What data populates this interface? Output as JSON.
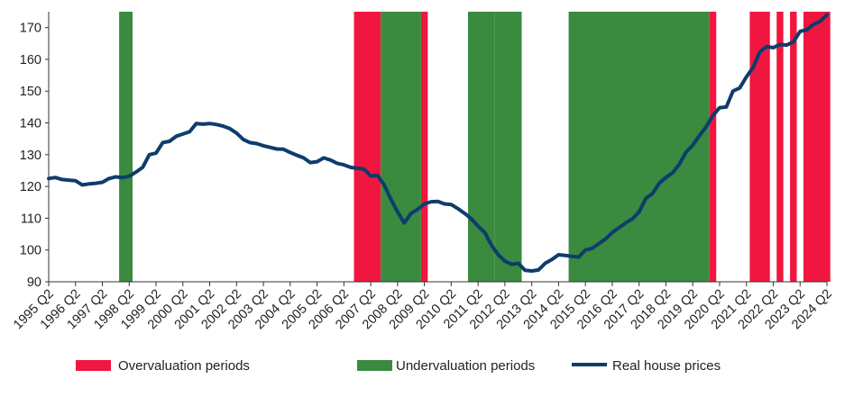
{
  "chart_data": {
    "type": "line",
    "title": "",
    "xlabel": "",
    "ylabel": "",
    "ylim": [
      90,
      175
    ],
    "yticks": [
      90,
      100,
      110,
      120,
      130,
      140,
      150,
      160,
      170
    ],
    "xticks": [
      "1995 Q2",
      "1996 Q2",
      "1997 Q2",
      "1998 Q2",
      "1999 Q2",
      "2000 Q2",
      "2001 Q2",
      "2002 Q2",
      "2003 Q2",
      "2004 Q2",
      "2005 Q2",
      "2006 Q2",
      "2007 Q2",
      "2008 Q2",
      "2009 Q2",
      "2010 Q2",
      "2011 Q2",
      "2012 Q2",
      "2013 Q2",
      "2014 Q2",
      "2015 Q2",
      "2016 Q2",
      "2017 Q2",
      "2018 Q2",
      "2019 Q2",
      "2020 Q2",
      "2021 Q2",
      "2022 Q2",
      "2023 Q2",
      "2024 Q2"
    ],
    "grid": false,
    "legend_position": "bottom",
    "series": [
      {
        "name": "Real house prices",
        "color": "#0d3d6b",
        "points": [
          [
            "1995 Q2",
            122.5
          ],
          [
            "1995 Q3",
            122.8
          ],
          [
            "1995 Q4",
            122.2
          ],
          [
            "1996 Q1",
            122.0
          ],
          [
            "1996 Q2",
            121.8
          ],
          [
            "1996 Q3",
            120.5
          ],
          [
            "1996 Q4",
            120.8
          ],
          [
            "1997 Q1",
            121.0
          ],
          [
            "1997 Q2",
            121.3
          ],
          [
            "1997 Q3",
            122.5
          ],
          [
            "1997 Q4",
            123.0
          ],
          [
            "1998 Q1",
            122.8
          ],
          [
            "1998 Q2",
            123.2
          ],
          [
            "1998 Q3",
            124.5
          ],
          [
            "1998 Q4",
            126.0
          ],
          [
            "1999 Q1",
            130.0
          ],
          [
            "1999 Q2",
            130.5
          ],
          [
            "1999 Q3",
            133.8
          ],
          [
            "1999 Q4",
            134.2
          ],
          [
            "2000 Q1",
            135.8
          ],
          [
            "2000 Q2",
            136.5
          ],
          [
            "2000 Q3",
            137.2
          ],
          [
            "2000 Q4",
            139.8
          ],
          [
            "2001 Q1",
            139.6
          ],
          [
            "2001 Q2",
            139.8
          ],
          [
            "2001 Q3",
            139.5
          ],
          [
            "2001 Q4",
            139.0
          ],
          [
            "2002 Q1",
            138.2
          ],
          [
            "2002 Q2",
            136.8
          ],
          [
            "2002 Q3",
            134.8
          ],
          [
            "2002 Q4",
            133.8
          ],
          [
            "2003 Q1",
            133.5
          ],
          [
            "2003 Q2",
            132.8
          ],
          [
            "2003 Q3",
            132.3
          ],
          [
            "2003 Q4",
            131.8
          ],
          [
            "2004 Q1",
            131.7
          ],
          [
            "2004 Q2",
            130.7
          ],
          [
            "2004 Q3",
            129.8
          ],
          [
            "2004 Q4",
            129.0
          ],
          [
            "2005 Q1",
            127.5
          ],
          [
            "2005 Q2",
            127.8
          ],
          [
            "2005 Q3",
            129.0
          ],
          [
            "2005 Q4",
            128.3
          ],
          [
            "2006 Q1",
            127.3
          ],
          [
            "2006 Q2",
            126.8
          ],
          [
            "2006 Q3",
            126.0
          ],
          [
            "2006 Q4",
            125.7
          ],
          [
            "2007 Q1",
            125.5
          ],
          [
            "2007 Q2",
            123.3
          ],
          [
            "2007 Q3",
            123.5
          ],
          [
            "2007 Q4",
            120.5
          ],
          [
            "2008 Q1",
            116.0
          ],
          [
            "2008 Q2",
            112.0
          ],
          [
            "2008 Q3",
            108.5
          ],
          [
            "2008 Q4",
            111.5
          ],
          [
            "2009 Q1",
            112.8
          ],
          [
            "2009 Q2",
            114.5
          ],
          [
            "2009 Q3",
            115.2
          ],
          [
            "2009 Q4",
            115.3
          ],
          [
            "2010 Q1",
            114.5
          ],
          [
            "2010 Q2",
            114.3
          ],
          [
            "2010 Q3",
            113.0
          ],
          [
            "2010 Q4",
            111.5
          ],
          [
            "2011 Q1",
            109.8
          ],
          [
            "2011 Q2",
            107.5
          ],
          [
            "2011 Q3",
            105.5
          ],
          [
            "2011 Q4",
            101.5
          ],
          [
            "2012 Q1",
            98.5
          ],
          [
            "2012 Q2",
            96.5
          ],
          [
            "2012 Q3",
            95.5
          ],
          [
            "2012 Q4",
            95.8
          ],
          [
            "2013 Q1",
            93.6
          ],
          [
            "2013 Q2",
            93.4
          ],
          [
            "2013 Q3",
            93.7
          ],
          [
            "2013 Q4",
            95.8
          ],
          [
            "2014 Q1",
            97.0
          ],
          [
            "2014 Q2",
            98.5
          ],
          [
            "2014 Q3",
            98.3
          ],
          [
            "2014 Q4",
            98.0
          ],
          [
            "2015 Q1",
            97.8
          ],
          [
            "2015 Q2",
            100.0
          ],
          [
            "2015 Q3",
            100.5
          ],
          [
            "2015 Q4",
            102.0
          ],
          [
            "2016 Q1",
            103.5
          ],
          [
            "2016 Q2",
            105.5
          ],
          [
            "2016 Q3",
            107.0
          ],
          [
            "2016 Q4",
            108.5
          ],
          [
            "2017 Q1",
            109.8
          ],
          [
            "2017 Q2",
            112.0
          ],
          [
            "2017 Q3",
            116.2
          ],
          [
            "2017 Q4",
            117.8
          ],
          [
            "2018 Q1",
            121.0
          ],
          [
            "2018 Q2",
            122.8
          ],
          [
            "2018 Q3",
            124.3
          ],
          [
            "2018 Q4",
            127.0
          ],
          [
            "2019 Q1",
            130.8
          ],
          [
            "2019 Q2",
            133.0
          ],
          [
            "2019 Q3",
            136.0
          ],
          [
            "2019 Q4",
            138.8
          ],
          [
            "2020 Q1",
            142.3
          ],
          [
            "2020 Q2",
            144.8
          ],
          [
            "2020 Q3",
            145.0
          ],
          [
            "2020 Q4",
            150.0
          ],
          [
            "2021 Q1",
            151.0
          ],
          [
            "2021 Q2",
            154.5
          ],
          [
            "2021 Q3",
            157.5
          ],
          [
            "2021 Q4",
            162.3
          ],
          [
            "2022 Q1",
            164.0
          ],
          [
            "2022 Q2",
            163.7
          ],
          [
            "2022 Q3",
            164.7
          ],
          [
            "2022 Q4",
            164.5
          ],
          [
            "2023 Q1",
            165.5
          ],
          [
            "2023 Q2",
            168.8
          ],
          [
            "2023 Q3",
            169.3
          ],
          [
            "2023 Q4",
            171.0
          ],
          [
            "2024 Q1",
            172.0
          ],
          [
            "2024 Q2",
            174.0
          ]
        ]
      }
    ],
    "overvaluation_periods": [
      [
        "2006 Q4",
        "2007 Q3"
      ],
      [
        "2009 Q2",
        "2009 Q2"
      ],
      [
        "2020 Q1",
        "2020 Q1"
      ],
      [
        "2021 Q3",
        "2022 Q1"
      ],
      [
        "2022 Q3",
        "2022 Q3"
      ],
      [
        "2023 Q1",
        "2023 Q1"
      ],
      [
        "2023 Q3",
        "2024 Q2"
      ]
    ],
    "undervaluation_periods": [
      [
        "1998 Q1",
        "1998 Q2"
      ],
      [
        "2007 Q4",
        "2009 Q1"
      ],
      [
        "2011 Q1",
        "2011 Q4"
      ],
      [
        "2012 Q1",
        "2012 Q4"
      ],
      [
        "2014 Q4",
        "2019 Q4"
      ]
    ],
    "legend": {
      "over_label": "Overvaluation periods",
      "under_label": "Undervaluation periods",
      "line_label": "Real house prices"
    },
    "colors": {
      "over": "#f0163f",
      "under": "#3a8a3f",
      "line": "#0d3d6b"
    }
  }
}
